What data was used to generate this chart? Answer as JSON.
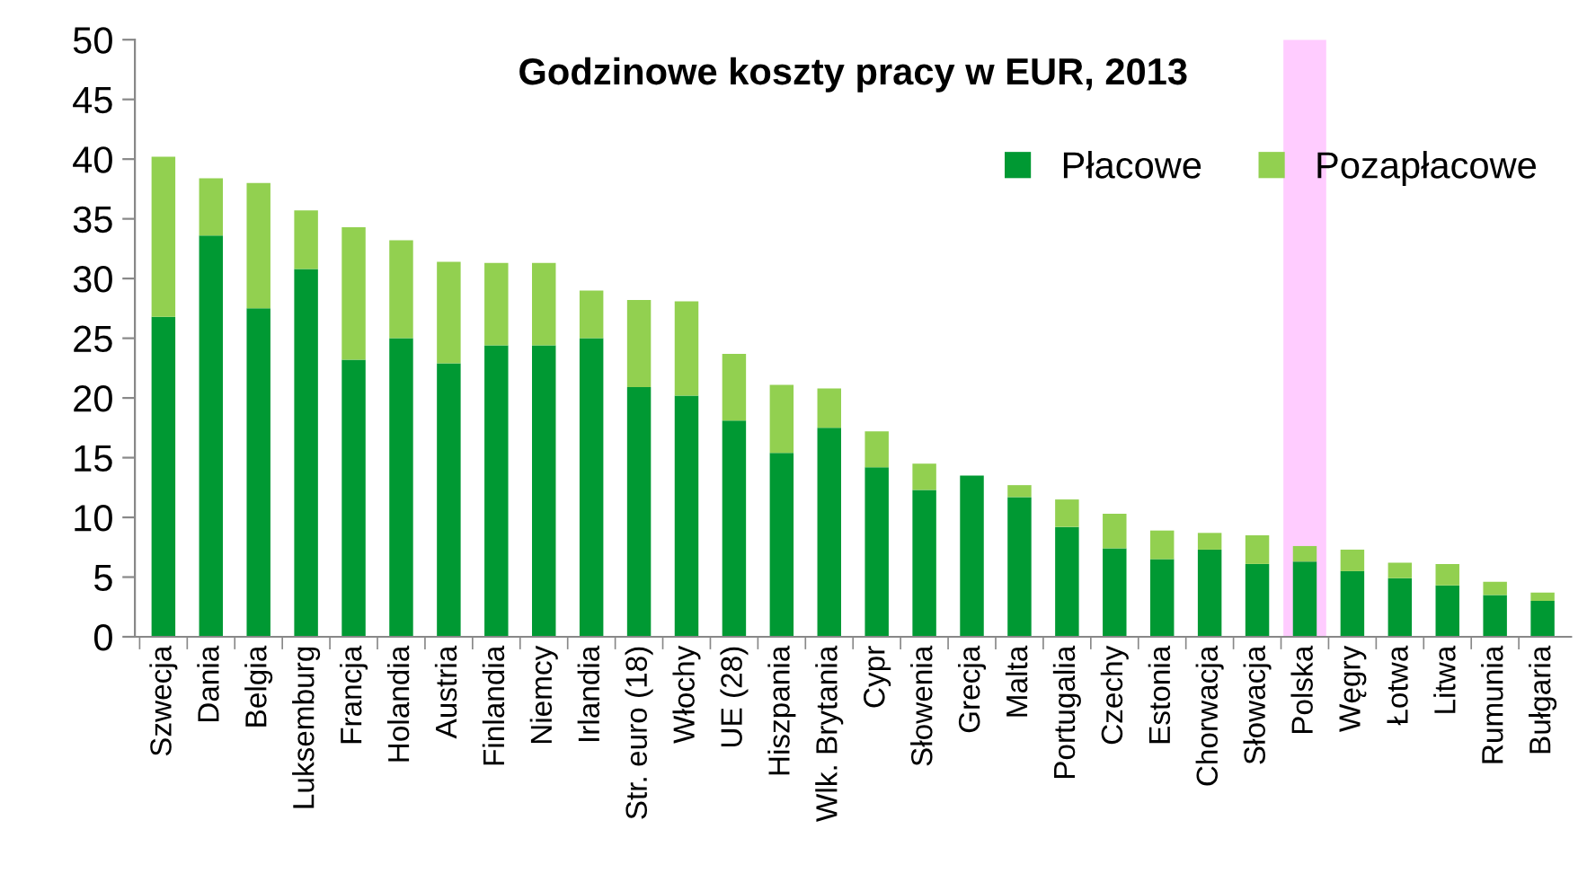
{
  "chart_data": {
    "type": "bar",
    "title": "Godzinowe koszty pracy w EUR, 2013",
    "stacked": true,
    "categories": [
      "Szwecja",
      "Dania",
      "Belgia",
      "Luksemburg",
      "Francja",
      "Holandia",
      "Austria",
      "Finlandia",
      "Niemcy",
      "Irlandia",
      "Str. euro (18)",
      "Włochy",
      "UE (28)",
      "Hiszpania",
      "Wlk. Brytania",
      "Cypr",
      "Słowenia",
      "Grecja",
      "Malta",
      "Portugalia",
      "Czechy",
      "Estonia",
      "Chorwacja",
      "Słowacja",
      "Polska",
      "Węgry",
      "Łotwa",
      "Litwa",
      "Rumunia",
      "Bułgaria"
    ],
    "series": [
      {
        "name": "Płacowe",
        "color": "#009933",
        "values": [
          26.8,
          33.6,
          27.5,
          30.8,
          23.2,
          25.0,
          22.9,
          24.4,
          24.4,
          25.0,
          20.9,
          20.2,
          18.1,
          15.4,
          17.5,
          14.2,
          12.3,
          13.5,
          11.7,
          9.2,
          7.4,
          6.5,
          7.3,
          6.1,
          6.3,
          5.5,
          4.9,
          4.3,
          3.5,
          3.0
        ]
      },
      {
        "name": "Pozapłacowe",
        "color": "#92d050",
        "values": [
          13.4,
          4.8,
          10.5,
          4.9,
          11.1,
          8.2,
          8.5,
          6.9,
          6.9,
          4.0,
          7.3,
          7.9,
          5.6,
          5.7,
          3.3,
          3.0,
          2.2,
          null,
          1.0,
          2.3,
          2.9,
          2.4,
          1.4,
          2.4,
          1.3,
          1.8,
          1.3,
          1.8,
          1.1,
          0.7
        ]
      }
    ],
    "ylim": [
      0,
      50
    ],
    "yticks": [
      0,
      5,
      10,
      15,
      20,
      25,
      30,
      35,
      40,
      45,
      50
    ],
    "bands": [
      {
        "axis": "x",
        "from": "Polska",
        "to": "Polska",
        "color": "#ffccff"
      }
    ],
    "grid": false,
    "legend": "top right"
  }
}
